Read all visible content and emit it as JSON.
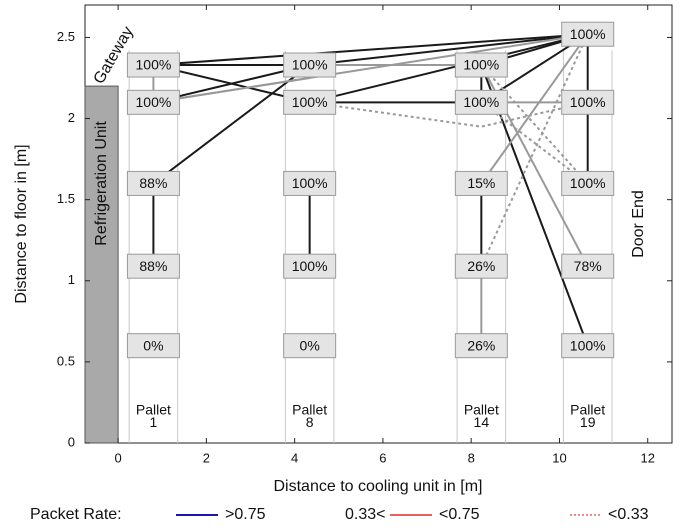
{
  "chart_data": {
    "type": "network",
    "xlabel": "Distance to cooling unit in [m]",
    "ylabel": "Distance to floor in [m]",
    "xlim": [
      -0.75,
      12.55
    ],
    "ylim": [
      0,
      2.7
    ],
    "xticks": [
      0,
      2,
      4,
      6,
      8,
      10,
      12
    ],
    "yticks": [
      0,
      0.5,
      1,
      1.5,
      2,
      2.5
    ],
    "annotations": {
      "refrigeration": "Refrigeration Unit",
      "gateway": "Gateway",
      "door": "Door End"
    },
    "refrigeration_unit": {
      "xlim": [
        -0.75,
        0
      ],
      "ylim": [
        0,
        2.2
      ]
    },
    "legend_title": "Packet Rate:",
    "legend": [
      {
        "name": ">0.75",
        "color": "#1a1aa8",
        "dashed": false
      },
      {
        "prefix": "0.33<",
        "name": "<0.75",
        "color": "#e86060",
        "dashed": false
      },
      {
        "name": "<0.33",
        "color": "#e86060",
        "dashed": true
      }
    ],
    "pallets": [
      {
        "label": "Pallet",
        "number": "1",
        "x": 0.8
      },
      {
        "label": "Pallet",
        "number": "8",
        "x": 4.34
      },
      {
        "label": "Pallet",
        "number": "14",
        "x": 8.23
      },
      {
        "label": "Pallet",
        "number": "19",
        "x": 10.64
      }
    ],
    "links": [
      {
        "x": [
          0.8,
          4.34
        ],
        "y": [
          2.33,
          2.33
        ],
        "color": "#1a1a1a",
        "dashed": false
      },
      {
        "x": [
          0.8,
          4.34
        ],
        "y": [
          2.33,
          2.1
        ],
        "color": "#1a1a1a",
        "dashed": false
      },
      {
        "x": [
          0.8,
          4.34
        ],
        "y": [
          2.1,
          2.33
        ],
        "color": "#1a1a1a",
        "dashed": false
      },
      {
        "x": [
          0.8,
          4.34
        ],
        "y": [
          1.6,
          2.33
        ],
        "color": "#1a1a1a",
        "dashed": false
      },
      {
        "x": [
          0.8,
          10.64
        ],
        "y": [
          2.33,
          2.52
        ],
        "color": "#1a1a1a",
        "dashed": false
      },
      {
        "x": [
          4.34,
          10.64
        ],
        "y": [
          2.33,
          2.52
        ],
        "color": "#1a1a1a",
        "dashed": false
      },
      {
        "x": [
          4.34,
          10.64
        ],
        "y": [
          2.1,
          2.52
        ],
        "color": "#1a1a1a",
        "dashed": false
      },
      {
        "x": [
          4.34,
          8.23
        ],
        "y": [
          2.1,
          2.1
        ],
        "color": "#1a1a1a",
        "dashed": false
      },
      {
        "x": [
          8.23,
          10.64
        ],
        "y": [
          2.33,
          2.52
        ],
        "color": "#1a1a1a",
        "dashed": false
      },
      {
        "x": [
          8.23,
          10.64
        ],
        "y": [
          2.1,
          2.52
        ],
        "color": "#1a1a1a",
        "dashed": false
      },
      {
        "x": [
          8.23,
          10.64
        ],
        "y": [
          2.33,
          0.6
        ],
        "color": "#1a1a1a",
        "dashed": false
      },
      {
        "x": [
          0.8,
          0.8
        ],
        "y": [
          1.6,
          1.09
        ],
        "color": "#1a1a1a",
        "dashed": false
      },
      {
        "x": [
          4.34,
          4.34
        ],
        "y": [
          1.6,
          1.09
        ],
        "color": "#1a1a1a",
        "dashed": false
      },
      {
        "x": [
          8.23,
          8.23
        ],
        "y": [
          2.33,
          2.1
        ],
        "color": "#1a1a1a",
        "dashed": false
      },
      {
        "x": [
          8.23,
          8.23
        ],
        "y": [
          1.6,
          1.09
        ],
        "color": "#1a1a1a",
        "dashed": false
      },
      {
        "x": [
          10.64,
          10.64
        ],
        "y": [
          2.52,
          2.1
        ],
        "color": "#1a1a1a",
        "dashed": false
      },
      {
        "x": [
          10.64,
          10.64
        ],
        "y": [
          2.1,
          1.6
        ],
        "color": "#1a1a1a",
        "dashed": false
      },
      {
        "x": [
          0.8,
          10.64
        ],
        "y": [
          2.1,
          2.52
        ],
        "color": "#999999",
        "dashed": false
      },
      {
        "x": [
          0.8,
          4.34
        ],
        "y": [
          2.1,
          2.25
        ],
        "color": "#999999",
        "dashed": false
      },
      {
        "x": [
          4.34,
          8.23
        ],
        "y": [
          2.33,
          2.33
        ],
        "color": "#999999",
        "dashed": false
      },
      {
        "x": [
          8.23,
          10.64
        ],
        "y": [
          1.6,
          2.52
        ],
        "color": "#999999",
        "dashed": false
      },
      {
        "x": [
          8.23,
          10.64
        ],
        "y": [
          2.33,
          1.09
        ],
        "color": "#999999",
        "dashed": false
      },
      {
        "x": [
          8.23,
          10.64
        ],
        "y": [
          2.1,
          2.1
        ],
        "color": "#999999",
        "dashed": false
      },
      {
        "x": [
          8.23,
          8.23
        ],
        "y": [
          1.09,
          0.6
        ],
        "color": "#999999",
        "dashed": false
      },
      {
        "x": [
          0.8,
          0.8
        ],
        "y": [
          2.33,
          2.1
        ],
        "color": "#999999",
        "dashed": false
      },
      {
        "x": [
          4.34,
          8.23,
          10.64
        ],
        "y": [
          2.1,
          1.95,
          2.1
        ],
        "color": "#999999",
        "dashed": true
      },
      {
        "x": [
          8.23,
          10.64
        ],
        "y": [
          1.09,
          2.52
        ],
        "color": "#999999",
        "dashed": true
      },
      {
        "x": [
          8.23,
          10.64
        ],
        "y": [
          2.1,
          1.6
        ],
        "color": "#999999",
        "dashed": true
      },
      {
        "x": [
          8.23,
          10.64
        ],
        "y": [
          2.33,
          1.6
        ],
        "color": "#999999",
        "dashed": true
      }
    ],
    "nodes": [
      {
        "x": 0.8,
        "y": 2.33,
        "label": "100%"
      },
      {
        "x": 0.8,
        "y": 2.1,
        "label": "100%"
      },
      {
        "x": 0.8,
        "y": 1.6,
        "label": "88%"
      },
      {
        "x": 0.8,
        "y": 1.09,
        "label": "88%"
      },
      {
        "x": 0.8,
        "y": 0.6,
        "label": "0%"
      },
      {
        "x": 4.34,
        "y": 2.33,
        "label": "100%"
      },
      {
        "x": 4.34,
        "y": 2.1,
        "label": "100%"
      },
      {
        "x": 4.34,
        "y": 1.6,
        "label": "100%"
      },
      {
        "x": 4.34,
        "y": 1.09,
        "label": "100%"
      },
      {
        "x": 4.34,
        "y": 0.6,
        "label": "0%"
      },
      {
        "x": 8.23,
        "y": 2.33,
        "label": "100%"
      },
      {
        "x": 8.23,
        "y": 2.1,
        "label": "100%"
      },
      {
        "x": 8.23,
        "y": 1.6,
        "label": "15%"
      },
      {
        "x": 8.23,
        "y": 1.09,
        "label": "26%"
      },
      {
        "x": 8.23,
        "y": 0.6,
        "label": "26%"
      },
      {
        "x": 10.64,
        "y": 2.52,
        "label": "100%"
      },
      {
        "x": 10.64,
        "y": 2.1,
        "label": "100%"
      },
      {
        "x": 10.64,
        "y": 1.6,
        "label": "100%"
      },
      {
        "x": 10.64,
        "y": 1.09,
        "label": "78%"
      },
      {
        "x": 10.64,
        "y": 0.6,
        "label": "100%"
      }
    ]
  }
}
